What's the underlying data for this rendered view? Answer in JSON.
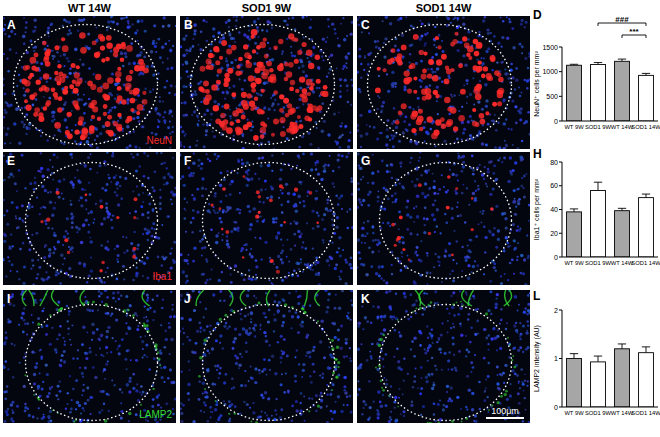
{
  "figure": {
    "columns": [
      "WT 14W",
      "SOD1 9W",
      "SOD1 14W"
    ],
    "rows": [
      {
        "stain": "NeuN",
        "color": "#ff2a2a",
        "panels": [
          "A",
          "B",
          "C"
        ]
      },
      {
        "stain": "Iba1",
        "color": "#ff2a2a",
        "panels": [
          "E",
          "F",
          "G"
        ]
      },
      {
        "stain": "LAMP2",
        "color": "#33dd33",
        "panels": [
          "I",
          "J",
          "K"
        ]
      }
    ],
    "scale_bar": "100μm"
  },
  "chart_data": [
    {
      "type": "bar",
      "panel_label": "D",
      "ylabel": "NeuN⁺ cells per mm²",
      "categories": [
        "WT 9W",
        "SOD1 9W",
        "WT 14W",
        "SOD1 14W"
      ],
      "values": [
        1130,
        1145,
        1210,
        925
      ],
      "errors": [
        20,
        40,
        45,
        40
      ],
      "colors": [
        "#a6a6a6",
        "#ffffff",
        "#a6a6a6",
        "#ffffff"
      ],
      "ylim": [
        0,
        1500
      ],
      "yticks": [
        0,
        500,
        1000,
        1500
      ],
      "annotations": [
        {
          "text": "###",
          "between": [
            1,
            3
          ]
        },
        {
          "text": "***",
          "between": [
            2,
            3
          ]
        }
      ]
    },
    {
      "type": "bar",
      "panel_label": "H",
      "ylabel": "Iba1⁺ cells per mm²",
      "categories": [
        "WT 9W",
        "SOD1 9W",
        "WT 14W",
        "SOD1 14W"
      ],
      "values": [
        38,
        56,
        39,
        50
      ],
      "errors": [
        2.5,
        7,
        2,
        3
      ],
      "colors": [
        "#a6a6a6",
        "#ffffff",
        "#a6a6a6",
        "#ffffff"
      ],
      "ylim": [
        0,
        80
      ],
      "yticks": [
        0,
        20,
        40,
        60,
        80
      ]
    },
    {
      "type": "bar",
      "panel_label": "L",
      "ylabel": "LAMP2 intensity (AU)",
      "categories": [
        "WT 9W",
        "SOD1 9W",
        "WT 14W",
        "SOD1 14W"
      ],
      "values": [
        1.0,
        0.93,
        1.2,
        1.12
      ],
      "errors": [
        0.1,
        0.12,
        0.1,
        0.12
      ],
      "colors": [
        "#a6a6a6",
        "#ffffff",
        "#a6a6a6",
        "#ffffff"
      ],
      "ylim": [
        0,
        2
      ],
      "yticks": [
        0,
        1,
        2
      ]
    }
  ]
}
